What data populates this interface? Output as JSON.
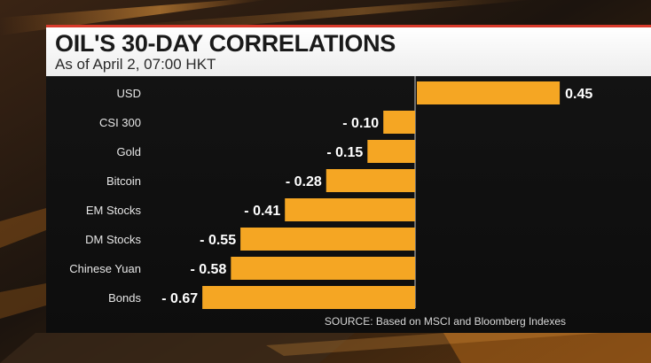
{
  "header": {
    "title": "OIL'S 30-DAY CORRELATIONS",
    "subtitle": "As of April 2, 07:00 HKT"
  },
  "source": "SOURCE: Based on MSCI and Bloomberg Indexes",
  "colors": {
    "bar": "#f5a623",
    "background": "#0f0f0f",
    "header_bg": "#ffffff",
    "header_accent": "#d93a2b"
  },
  "chart_data": {
    "type": "bar",
    "orientation": "horizontal",
    "categories": [
      "USD",
      "CSI 300",
      "Gold",
      "Bitcoin",
      "EM Stocks",
      "DM Stocks",
      "Chinese Yuan",
      "Bonds"
    ],
    "values": [
      0.45,
      -0.1,
      -0.15,
      -0.28,
      -0.41,
      -0.55,
      -0.58,
      -0.67
    ],
    "value_labels": [
      "0.45",
      "- 0.10",
      "- 0.15",
      "- 0.28",
      "- 0.41",
      "- 0.55",
      "- 0.58",
      "- 0.67"
    ],
    "title": "OIL'S 30-DAY CORRELATIONS",
    "subtitle": "As of April 2, 07:00 HKT",
    "xlim": [
      -0.75,
      0.5
    ],
    "grid": false,
    "legend": "none"
  }
}
